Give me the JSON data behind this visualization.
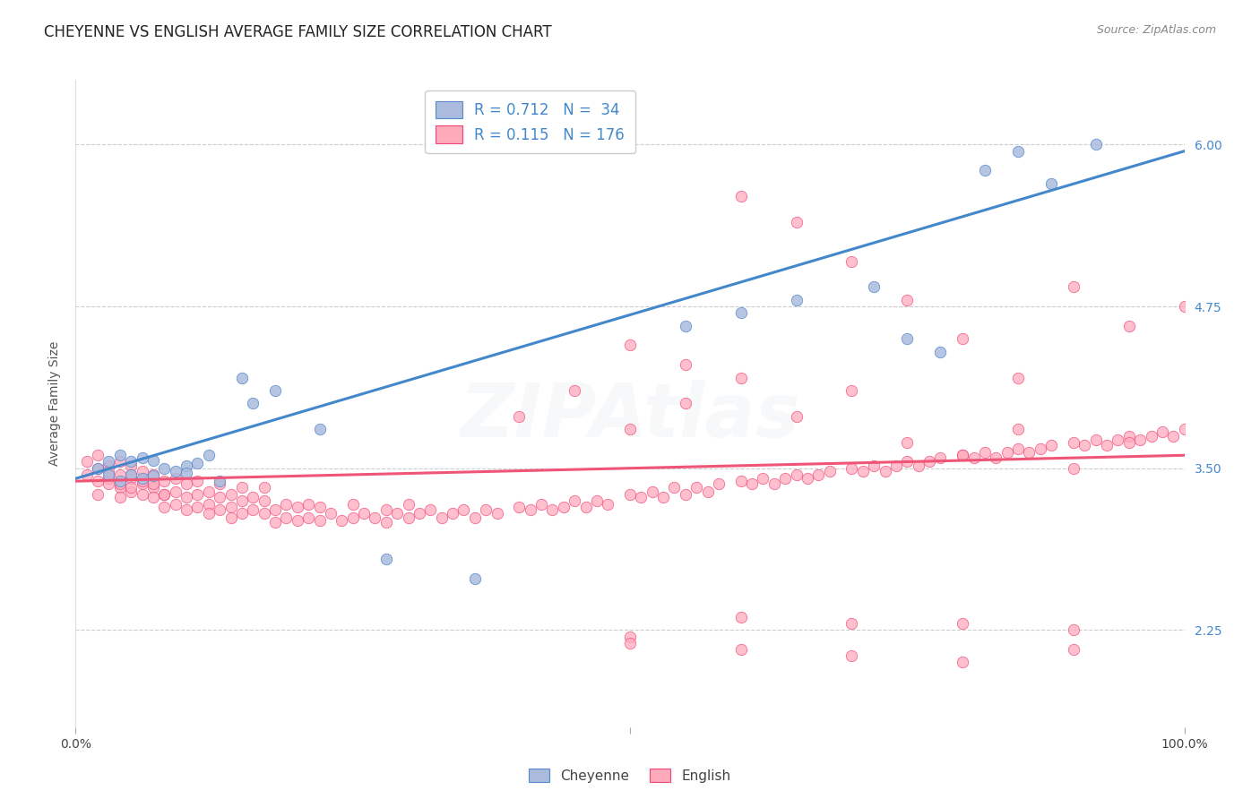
{
  "title": "CHEYENNE VS ENGLISH AVERAGE FAMILY SIZE CORRELATION CHART",
  "source": "Source: ZipAtlas.com",
  "ylabel": "Average Family Size",
  "yticks": [
    2.25,
    3.5,
    4.75,
    6.0
  ],
  "ylim": [
    1.5,
    6.5
  ],
  "xlim": [
    0.0,
    1.0
  ],
  "watermark": "ZIPAtlas",
  "legend_r1": "R = 0.712",
  "legend_n1": "N =  34",
  "legend_r2": "R = 0.115",
  "legend_n2": "N = 176",
  "cheyenne_fill": "#aabbdd",
  "cheyenne_edge": "#5588cc",
  "english_fill": "#ffaabb",
  "english_edge": "#ee4477",
  "blue_line": "#4488cc",
  "pink_line": "#ee5577",
  "cheyenne_x": [
    0.02,
    0.03,
    0.03,
    0.04,
    0.04,
    0.05,
    0.05,
    0.06,
    0.06,
    0.07,
    0.07,
    0.08,
    0.09,
    0.1,
    0.1,
    0.11,
    0.12,
    0.13,
    0.15,
    0.16,
    0.18,
    0.22,
    0.28,
    0.36,
    0.55,
    0.6,
    0.65,
    0.72,
    0.75,
    0.78,
    0.82,
    0.85,
    0.88,
    0.92
  ],
  "cheyenne_y": [
    3.5,
    3.45,
    3.55,
    3.4,
    3.6,
    3.45,
    3.55,
    3.42,
    3.58,
    3.44,
    3.56,
    3.5,
    3.48,
    3.52,
    3.46,
    3.54,
    3.6,
    3.4,
    4.2,
    4.0,
    4.1,
    3.8,
    2.8,
    2.65,
    4.6,
    4.7,
    4.8,
    4.9,
    4.5,
    4.4,
    5.8,
    5.95,
    5.7,
    6.0
  ],
  "english_x": [
    0.01,
    0.01,
    0.02,
    0.02,
    0.02,
    0.02,
    0.03,
    0.03,
    0.03,
    0.03,
    0.04,
    0.04,
    0.04,
    0.04,
    0.04,
    0.05,
    0.05,
    0.05,
    0.05,
    0.05,
    0.06,
    0.06,
    0.06,
    0.06,
    0.07,
    0.07,
    0.07,
    0.07,
    0.08,
    0.08,
    0.08,
    0.08,
    0.09,
    0.09,
    0.09,
    0.1,
    0.1,
    0.1,
    0.11,
    0.11,
    0.11,
    0.12,
    0.12,
    0.12,
    0.13,
    0.13,
    0.13,
    0.14,
    0.14,
    0.14,
    0.15,
    0.15,
    0.15,
    0.16,
    0.16,
    0.17,
    0.17,
    0.17,
    0.18,
    0.18,
    0.19,
    0.19,
    0.2,
    0.2,
    0.21,
    0.21,
    0.22,
    0.22,
    0.23,
    0.24,
    0.25,
    0.25,
    0.26,
    0.27,
    0.28,
    0.28,
    0.29,
    0.3,
    0.3,
    0.31,
    0.32,
    0.33,
    0.34,
    0.35,
    0.36,
    0.37,
    0.38,
    0.4,
    0.41,
    0.42,
    0.43,
    0.44,
    0.45,
    0.46,
    0.47,
    0.48,
    0.5,
    0.51,
    0.52,
    0.53,
    0.54,
    0.55,
    0.56,
    0.57,
    0.58,
    0.6,
    0.61,
    0.62,
    0.63,
    0.64,
    0.65,
    0.66,
    0.67,
    0.68,
    0.7,
    0.71,
    0.72,
    0.73,
    0.74,
    0.75,
    0.76,
    0.77,
    0.78,
    0.8,
    0.81,
    0.82,
    0.83,
    0.84,
    0.85,
    0.86,
    0.87,
    0.88,
    0.9,
    0.91,
    0.92,
    0.93,
    0.94,
    0.95,
    0.96,
    0.97,
    0.98,
    0.99,
    1.0,
    0.5,
    0.55,
    0.6,
    0.65,
    0.7,
    0.75,
    0.8,
    0.85,
    0.9,
    0.95,
    1.0,
    0.4,
    0.45,
    0.5,
    0.55,
    0.6,
    0.65,
    0.7,
    0.75,
    0.8,
    0.85,
    0.9,
    0.95,
    0.5,
    0.6,
    0.7,
    0.8,
    0.9,
    0.5,
    0.6,
    0.7,
    0.8,
    0.9
  ],
  "english_y": [
    3.45,
    3.55,
    3.4,
    3.5,
    3.6,
    3.3,
    3.42,
    3.52,
    3.38,
    3.48,
    3.35,
    3.45,
    3.55,
    3.38,
    3.28,
    3.32,
    3.42,
    3.52,
    3.35,
    3.45,
    3.38,
    3.48,
    3.3,
    3.4,
    3.35,
    3.45,
    3.28,
    3.38,
    3.3,
    3.4,
    3.2,
    3.3,
    3.22,
    3.32,
    3.42,
    3.18,
    3.28,
    3.38,
    3.2,
    3.3,
    3.4,
    3.22,
    3.32,
    3.15,
    3.18,
    3.28,
    3.38,
    3.2,
    3.3,
    3.12,
    3.15,
    3.25,
    3.35,
    3.18,
    3.28,
    3.15,
    3.25,
    3.35,
    3.18,
    3.08,
    3.12,
    3.22,
    3.1,
    3.2,
    3.12,
    3.22,
    3.1,
    3.2,
    3.15,
    3.1,
    3.12,
    3.22,
    3.15,
    3.12,
    3.18,
    3.08,
    3.15,
    3.12,
    3.22,
    3.15,
    3.18,
    3.12,
    3.15,
    3.18,
    3.12,
    3.18,
    3.15,
    3.2,
    3.18,
    3.22,
    3.18,
    3.2,
    3.25,
    3.2,
    3.25,
    3.22,
    3.3,
    3.28,
    3.32,
    3.28,
    3.35,
    3.3,
    3.35,
    3.32,
    3.38,
    3.4,
    3.38,
    3.42,
    3.38,
    3.42,
    3.45,
    3.42,
    3.45,
    3.48,
    3.5,
    3.48,
    3.52,
    3.48,
    3.52,
    3.55,
    3.52,
    3.55,
    3.58,
    3.6,
    3.58,
    3.62,
    3.58,
    3.62,
    3.65,
    3.62,
    3.65,
    3.68,
    3.7,
    3.68,
    3.72,
    3.68,
    3.72,
    3.75,
    3.72,
    3.75,
    3.78,
    3.75,
    3.8,
    4.45,
    4.3,
    5.6,
    5.4,
    5.1,
    4.8,
    4.5,
    4.2,
    4.9,
    4.6,
    4.75,
    3.9,
    4.1,
    3.8,
    4.0,
    4.2,
    3.9,
    4.1,
    3.7,
    3.6,
    3.8,
    3.5,
    3.7,
    2.2,
    2.1,
    2.3,
    2.0,
    2.25,
    2.15,
    2.35,
    2.05,
    2.3,
    2.1
  ],
  "cheyenne_trend_x": [
    0.0,
    1.0
  ],
  "cheyenne_trend_y": [
    3.42,
    5.95
  ],
  "english_trend_x": [
    0.0,
    1.0
  ],
  "english_trend_y": [
    3.4,
    3.6
  ],
  "background_color": "#ffffff",
  "grid_color": "#cccccc",
  "title_fontsize": 12,
  "axis_label_fontsize": 10,
  "tick_fontsize": 10,
  "legend_fontsize": 12,
  "watermark_alpha": 0.12,
  "watermark_fontsize": 60
}
